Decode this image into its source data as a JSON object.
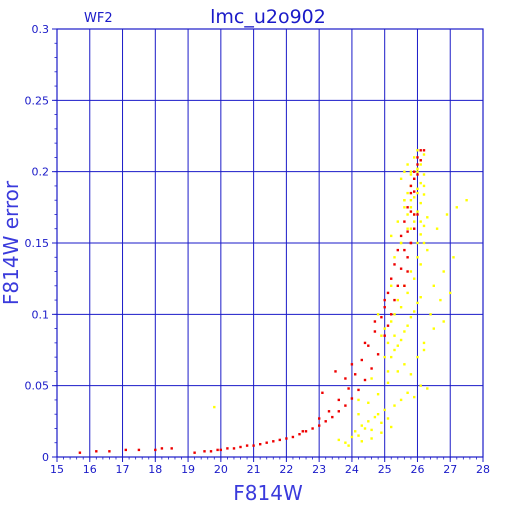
{
  "chart_data": {
    "type": "scatter",
    "title": "lmc_u2o902",
    "panel_label": "WF2",
    "xlabel": "F814W",
    "ylabel": "F814W error",
    "xlim": [
      15,
      28
    ],
    "ylim": [
      0,
      0.3
    ],
    "x_ticks": [
      "15",
      "16",
      "17",
      "18",
      "19",
      "20",
      "21",
      "22",
      "23",
      "24",
      "25",
      "26",
      "27",
      "28"
    ],
    "y_ticks": [
      "0",
      "0.05",
      "0.1",
      "0.15",
      "0.2",
      "0.25",
      "0.3"
    ],
    "grid": true,
    "colors": {
      "axis": "#1a1ac8",
      "grid": "#1a1ac8",
      "series_red": "#ee0000",
      "series_yellow": "#ffff00"
    },
    "series": [
      {
        "color": "#ffff00",
        "x": [
          19.8,
          23.6,
          23.8,
          24.0,
          24.1,
          24.2,
          24.3,
          24.4,
          24.5,
          24.6,
          24.7,
          24.8,
          24.9,
          25.0,
          25.1,
          25.2,
          23.9,
          24.3,
          24.6,
          24.9,
          25.3,
          25.5,
          25.7,
          25.9,
          26.1,
          26.3,
          24.2,
          24.5,
          24.8,
          25.1,
          25.4,
          25.6,
          25.8,
          26.0,
          26.2,
          24.9,
          25.0,
          25.1,
          25.2,
          25.3,
          25.4,
          25.5,
          25.6,
          25.7,
          25.8,
          25.9,
          26.0,
          26.1,
          26.2,
          26.3,
          25.1,
          25.2,
          25.3,
          25.4,
          25.5,
          25.6,
          25.7,
          25.8,
          25.9,
          26.0,
          26.1,
          25.3,
          25.5,
          25.7,
          25.9,
          26.1,
          25.2,
          25.4,
          25.6,
          25.8,
          26.0,
          26.2,
          25.5,
          25.6,
          25.7,
          25.8,
          25.9,
          26.0,
          26.1,
          25.6,
          25.7,
          25.8,
          25.9,
          26.0,
          26.1,
          26.2,
          25.7,
          25.8,
          25.9,
          26.0,
          26.1,
          26.2,
          25.8,
          25.9,
          26.0,
          26.1,
          26.2,
          26.0,
          26.1,
          26.2,
          26.3,
          26.6,
          26.9,
          27.2,
          27.5,
          26.5,
          26.8,
          27.1,
          26.4,
          26.7,
          27.0,
          26.2,
          26.5,
          26.8,
          25.6,
          25.8,
          26.0,
          24.2,
          24.6,
          25.0,
          25.3,
          24.8,
          25.2,
          25.5
        ],
        "y": [
          0.035,
          0.012,
          0.01,
          0.014,
          0.018,
          0.015,
          0.022,
          0.02,
          0.025,
          0.019,
          0.028,
          0.03,
          0.024,
          0.033,
          0.027,
          0.021,
          0.008,
          0.011,
          0.013,
          0.017,
          0.036,
          0.04,
          0.045,
          0.042,
          0.05,
          0.048,
          0.03,
          0.038,
          0.044,
          0.052,
          0.06,
          0.065,
          0.058,
          0.07,
          0.075,
          0.085,
          0.09,
          0.08,
          0.095,
          0.1,
          0.11,
          0.105,
          0.12,
          0.115,
          0.13,
          0.125,
          0.14,
          0.135,
          0.15,
          0.145,
          0.06,
          0.07,
          0.075,
          0.078,
          0.082,
          0.088,
          0.092,
          0.098,
          0.102,
          0.108,
          0.112,
          0.14,
          0.15,
          0.16,
          0.17,
          0.165,
          0.155,
          0.165,
          0.175,
          0.18,
          0.185,
          0.19,
          0.195,
          0.2,
          0.205,
          0.198,
          0.21,
          0.202,
          0.208,
          0.18,
          0.185,
          0.19,
          0.195,
          0.2,
          0.205,
          0.212,
          0.17,
          0.175,
          0.182,
          0.188,
          0.192,
          0.198,
          0.16,
          0.165,
          0.172,
          0.178,
          0.184,
          0.15,
          0.156,
          0.162,
          0.168,
          0.16,
          0.17,
          0.175,
          0.18,
          0.12,
          0.13,
          0.14,
          0.1,
          0.11,
          0.115,
          0.08,
          0.09,
          0.095,
          0.18,
          0.2,
          0.215,
          0.04,
          0.055,
          0.07,
          0.085,
          0.1,
          0.12,
          0.15
        ]
      },
      {
        "color": "#ee0000",
        "x": [
          15.7,
          16.2,
          16.6,
          17.1,
          17.5,
          18.0,
          18.2,
          18.5,
          19.2,
          19.5,
          19.7,
          19.9,
          20.0,
          20.2,
          20.4,
          20.6,
          20.8,
          21.0,
          21.2,
          21.4,
          21.6,
          21.8,
          22.0,
          22.2,
          22.4,
          22.6,
          22.8,
          23.0,
          23.2,
          23.4,
          23.6,
          23.8,
          24.0,
          24.2,
          24.4,
          24.6,
          24.8,
          25.0,
          25.1,
          25.2,
          25.3,
          25.4,
          25.5,
          25.6,
          25.7,
          25.8,
          25.9,
          26.0,
          26.1,
          26.2,
          22.5,
          23.0,
          23.3,
          23.6,
          23.9,
          24.1,
          24.3,
          24.5,
          24.7,
          24.9,
          25.0,
          25.1,
          25.2,
          25.3,
          25.4,
          25.5,
          25.6,
          25.7,
          25.8,
          25.9,
          26.0,
          25.7,
          25.8,
          25.9,
          26.0,
          25.6,
          25.7,
          25.8,
          25.9,
          25.8,
          25.9,
          26.0,
          26.1,
          23.1,
          23.5,
          23.8,
          24.0,
          24.4,
          24.7,
          25.0
        ],
        "y": [
          0.003,
          0.004,
          0.004,
          0.005,
          0.005,
          0.005,
          0.006,
          0.006,
          0.003,
          0.004,
          0.004,
          0.005,
          0.005,
          0.006,
          0.006,
          0.007,
          0.008,
          0.008,
          0.009,
          0.01,
          0.011,
          0.012,
          0.013,
          0.014,
          0.016,
          0.018,
          0.02,
          0.022,
          0.025,
          0.028,
          0.032,
          0.036,
          0.041,
          0.047,
          0.054,
          0.062,
          0.072,
          0.085,
          0.092,
          0.1,
          0.11,
          0.12,
          0.132,
          0.145,
          0.158,
          0.172,
          0.186,
          0.198,
          0.208,
          0.215,
          0.018,
          0.027,
          0.032,
          0.04,
          0.048,
          0.058,
          0.068,
          0.078,
          0.088,
          0.098,
          0.105,
          0.115,
          0.125,
          0.135,
          0.145,
          0.155,
          0.165,
          0.175,
          0.185,
          0.195,
          0.205,
          0.14,
          0.15,
          0.16,
          0.17,
          0.12,
          0.13,
          0.15,
          0.17,
          0.19,
          0.2,
          0.21,
          0.215,
          0.045,
          0.06,
          0.055,
          0.065,
          0.08,
          0.095,
          0.11
        ]
      }
    ]
  }
}
